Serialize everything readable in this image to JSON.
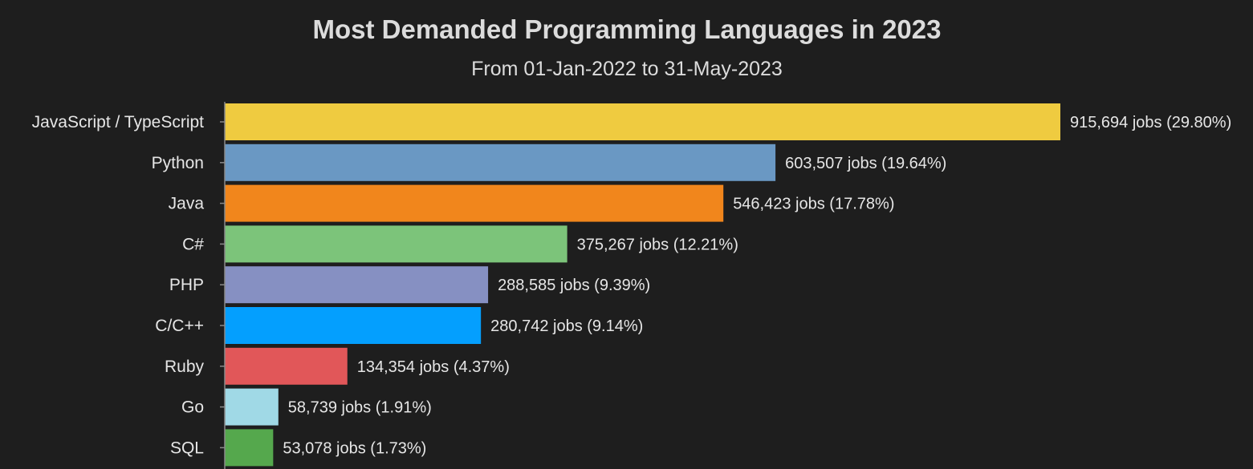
{
  "chart_data": {
    "type": "bar",
    "orientation": "horizontal",
    "title": "Most Demanded Programming Languages in 2023",
    "subtitle": "From 01-Jan-2022 to 31-May-2023",
    "xlabel": "",
    "ylabel": "",
    "xlim": [
      0,
      915694
    ],
    "grid": false,
    "legend": "none",
    "categories": [
      "JavaScript / TypeScript",
      "Python",
      "Java",
      "C#",
      "PHP",
      "C/C++",
      "Ruby",
      "Go",
      "SQL"
    ],
    "values": [
      915694,
      603507,
      546423,
      375267,
      288585,
      280742,
      134354,
      58739,
      53078
    ],
    "data_labels": [
      "915,694 jobs (29.80%)",
      "603,507 jobs (19.64%)",
      "546,423 jobs (17.78%)",
      "375,267 jobs (12.21%)",
      "288,585 jobs (9.39%)",
      "280,742 jobs (9.14%)",
      "134,354 jobs (4.37%)",
      "58,739 jobs (1.91%)",
      "53,078 jobs (1.73%)"
    ],
    "colors": [
      "#efcb40",
      "#6a98c3",
      "#f1861c",
      "#7cc47a",
      "#8690c2",
      "#049ffe",
      "#e15759",
      "#a0d9e6",
      "#55a84d"
    ],
    "background": "#1e1e1e",
    "axis_color": "#8a8a8a"
  }
}
